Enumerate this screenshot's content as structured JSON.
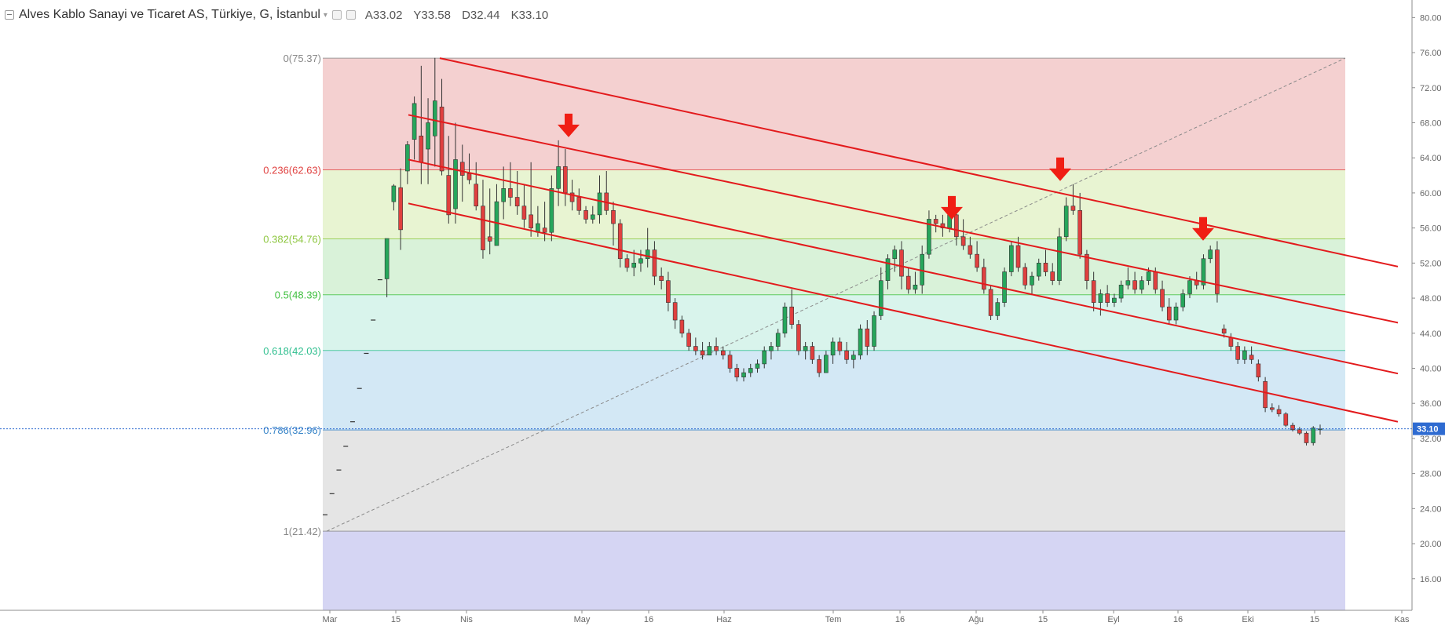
{
  "header": {
    "title": "Alves Kablo Sanayi ve Ticaret AS, Türkiye, G, İstanbul",
    "ohlc": {
      "open": "A33.02",
      "high": "Y33.58",
      "low": "D32.44",
      "close": "K33.10"
    }
  },
  "colors": {
    "up": "#26a65b",
    "down": "#e0403f",
    "channel": "#e31a1c",
    "arrow": "#f01e14",
    "price_line": "#2e6bd1",
    "axis_text": "#666666",
    "zones": [
      "#f4d0d0",
      "#e8f4d2",
      "#d9f2d9",
      "#d9f4ec",
      "#d3e8f5",
      "#e5e5e5",
      "#d5d5f3"
    ],
    "fib_text": [
      "#888888",
      "#e0403f",
      "#8dc63f",
      "#3fbf3f",
      "#2fbf8f",
      "#3a86c8",
      "#888888"
    ]
  },
  "chart_data": {
    "type": "candlestick",
    "symbol_title": "Alves Kablo Sanayi ve Ticaret AS, Türkiye, G, İstanbul",
    "x_tick_labels": [
      "Mar",
      "15",
      "Nis",
      "May",
      "16",
      "Haz",
      "Tem",
      "16",
      "Ağu",
      "15",
      "Eyl",
      "16",
      "Eki",
      "15",
      "Kas"
    ],
    "y_ticks": [
      "80.00",
      "76.00",
      "72.00",
      "68.00",
      "64.00",
      "60.00",
      "56.00",
      "52.00",
      "48.00",
      "44.00",
      "40.00",
      "36.00",
      "32.00",
      "28.00",
      "24.00",
      "20.00",
      "16.00"
    ],
    "ylim": [
      12.4,
      82.0
    ],
    "last_price": "33.10",
    "fibonacci": [
      {
        "label": "0(75.37)",
        "price": 75.37
      },
      {
        "label": "0.236(62.63)",
        "price": 62.63
      },
      {
        "label": "0.382(54.76)",
        "price": 54.76
      },
      {
        "label": "0.5(48.39)",
        "price": 48.39
      },
      {
        "label": "0.618(42.03)",
        "price": 42.03
      },
      {
        "label": "0.786(32.96)",
        "price": 32.96
      },
      {
        "label": "1(21.42)",
        "price": 21.42
      }
    ],
    "fib_trendline": {
      "from_price": 21.42,
      "to_price": 75.37
    },
    "channel_lines": [
      {
        "start_price": 75.37,
        "end_price": 51.6
      },
      {
        "start_price": 68.9,
        "end_price": 45.2
      },
      {
        "start_price": 63.8,
        "end_price": 39.4
      },
      {
        "start_price": 58.8,
        "end_price": 33.9
      }
    ],
    "arrow_markers": [
      {
        "near_price": 66.0
      },
      {
        "near_price": 56.6
      },
      {
        "near_price": 61.0
      },
      {
        "near_price": 54.2
      }
    ],
    "candles": [
      [
        23.4,
        23.4,
        23.3,
        23.3
      ],
      [
        25.8,
        25.8,
        25.7,
        25.7
      ],
      [
        28.5,
        28.5,
        28.4,
        28.4
      ],
      [
        31.2,
        31.2,
        31.1,
        31.1
      ],
      [
        34.0,
        34.0,
        33.9,
        33.9
      ],
      [
        37.8,
        37.8,
        37.7,
        37.7
      ],
      [
        41.8,
        41.8,
        41.7,
        41.7
      ],
      [
        45.6,
        45.6,
        45.5,
        45.5
      ],
      [
        50.2,
        50.2,
        50.1,
        50.1
      ],
      [
        50.2,
        54.8,
        48.1,
        54.8
      ],
      [
        59.0,
        61.0,
        58.0,
        60.8
      ],
      [
        60.6,
        62.8,
        53.5,
        55.8
      ],
      [
        62.5,
        65.9,
        61.0,
        65.5
      ],
      [
        66.1,
        71.0,
        63.8,
        70.2
      ],
      [
        66.5,
        74.5,
        61.0,
        63.5
      ],
      [
        65.0,
        70.8,
        61.0,
        68.0
      ],
      [
        66.5,
        75.4,
        63.0,
        70.5
      ],
      [
        69.8,
        73.0,
        62.0,
        62.5
      ],
      [
        62.0,
        66.5,
        56.5,
        57.5
      ],
      [
        58.2,
        68.0,
        56.5,
        63.8
      ],
      [
        63.5,
        65.5,
        59.0,
        62.0
      ],
      [
        62.2,
        64.5,
        61.0,
        61.5
      ],
      [
        61.0,
        63.5,
        58.0,
        58.5
      ],
      [
        58.5,
        61.5,
        52.5,
        53.5
      ],
      [
        55.0,
        60.5,
        53.0,
        54.5
      ],
      [
        54.0,
        61.0,
        54.0,
        59.0
      ],
      [
        59.0,
        63.0,
        57.0,
        60.5
      ],
      [
        60.5,
        63.5,
        58.5,
        59.5
      ],
      [
        59.5,
        62.5,
        57.5,
        58.5
      ],
      [
        58.5,
        61.0,
        56.0,
        57.0
      ],
      [
        57.5,
        63.5,
        55.0,
        56.0
      ],
      [
        55.5,
        58.5,
        55.0,
        56.5
      ],
      [
        56.0,
        59.0,
        54.5,
        55.5
      ],
      [
        55.5,
        62.0,
        54.5,
        60.5
      ],
      [
        60.5,
        66.0,
        58.5,
        63.0
      ],
      [
        63.0,
        65.0,
        58.5,
        60.0
      ],
      [
        60.0,
        61.5,
        58.0,
        59.0
      ],
      [
        59.5,
        60.5,
        57.5,
        58.0
      ],
      [
        58.0,
        58.5,
        56.5,
        57.0
      ],
      [
        57.0,
        58.5,
        56.5,
        57.5
      ],
      [
        57.5,
        62.0,
        56.5,
        60.0
      ],
      [
        60.0,
        62.5,
        57.5,
        58.0
      ],
      [
        58.0,
        59.0,
        54.0,
        56.5
      ],
      [
        56.5,
        57.0,
        51.5,
        52.5
      ],
      [
        52.5,
        53.0,
        51.0,
        51.5
      ],
      [
        51.5,
        53.5,
        50.5,
        52.0
      ],
      [
        52.0,
        53.5,
        51.0,
        52.5
      ],
      [
        52.5,
        56.0,
        51.5,
        53.5
      ],
      [
        53.5,
        54.5,
        49.5,
        50.5
      ],
      [
        50.5,
        51.5,
        49.0,
        50.0
      ],
      [
        50.0,
        51.0,
        46.5,
        47.5
      ],
      [
        47.5,
        48.0,
        44.5,
        45.5
      ],
      [
        45.5,
        46.0,
        43.5,
        44.0
      ],
      [
        44.0,
        44.5,
        42.0,
        42.5
      ],
      [
        42.5,
        43.5,
        41.5,
        42.0
      ],
      [
        42.0,
        43.0,
        41.0,
        41.5
      ],
      [
        41.5,
        43.0,
        41.5,
        42.5
      ],
      [
        42.5,
        43.5,
        41.5,
        42.0
      ],
      [
        42.0,
        42.5,
        41.0,
        41.5
      ],
      [
        41.5,
        42.0,
        39.5,
        40.0
      ],
      [
        40.0,
        40.5,
        38.5,
        39.0
      ],
      [
        39.0,
        40.0,
        38.5,
        39.5
      ],
      [
        39.5,
        40.5,
        39.0,
        40.0
      ],
      [
        40.0,
        41.0,
        39.5,
        40.5
      ],
      [
        40.5,
        42.5,
        40.0,
        42.0
      ],
      [
        42.0,
        43.0,
        41.0,
        42.5
      ],
      [
        42.5,
        44.5,
        42.0,
        44.0
      ],
      [
        44.0,
        47.5,
        43.5,
        47.0
      ],
      [
        47.0,
        49.0,
        44.5,
        45.0
      ],
      [
        45.0,
        45.5,
        41.5,
        42.0
      ],
      [
        42.0,
        43.0,
        41.0,
        42.5
      ],
      [
        42.5,
        43.0,
        40.5,
        41.0
      ],
      [
        41.0,
        41.5,
        39.0,
        39.5
      ],
      [
        39.5,
        42.0,
        39.5,
        41.5
      ],
      [
        41.5,
        43.5,
        40.5,
        43.0
      ],
      [
        43.0,
        43.5,
        41.5,
        42.0
      ],
      [
        42.0,
        43.0,
        40.5,
        41.0
      ],
      [
        41.0,
        42.0,
        40.0,
        41.5
      ],
      [
        41.5,
        45.0,
        41.0,
        44.5
      ],
      [
        44.5,
        45.5,
        41.5,
        42.5
      ],
      [
        42.5,
        46.5,
        42.0,
        46.0
      ],
      [
        46.0,
        51.5,
        45.5,
        50.0
      ],
      [
        50.0,
        53.0,
        49.0,
        52.5
      ],
      [
        52.5,
        54.0,
        51.0,
        53.5
      ],
      [
        53.5,
        54.5,
        49.0,
        50.5
      ],
      [
        50.5,
        51.5,
        48.5,
        49.0
      ],
      [
        49.0,
        51.0,
        48.5,
        49.5
      ],
      [
        49.5,
        54.0,
        48.5,
        53.0
      ],
      [
        53.0,
        58.0,
        52.5,
        57.0
      ],
      [
        57.0,
        57.5,
        55.5,
        56.5
      ],
      [
        56.5,
        57.5,
        55.0,
        56.0
      ],
      [
        56.0,
        58.5,
        55.5,
        57.5
      ],
      [
        57.5,
        58.0,
        54.0,
        55.0
      ],
      [
        55.0,
        57.0,
        53.5,
        54.0
      ],
      [
        54.0,
        55.0,
        52.5,
        53.0
      ],
      [
        53.0,
        54.5,
        51.0,
        51.5
      ],
      [
        51.5,
        52.5,
        48.5,
        49.0
      ],
      [
        49.0,
        49.5,
        45.5,
        46.0
      ],
      [
        46.0,
        48.0,
        45.5,
        47.5
      ],
      [
        47.5,
        51.5,
        47.0,
        51.0
      ],
      [
        51.0,
        54.5,
        50.5,
        54.0
      ],
      [
        54.0,
        55.0,
        51.0,
        51.5
      ],
      [
        51.5,
        52.0,
        49.0,
        49.5
      ],
      [
        49.5,
        51.0,
        48.5,
        50.5
      ],
      [
        50.5,
        52.5,
        50.0,
        52.0
      ],
      [
        52.0,
        53.5,
        50.5,
        51.0
      ],
      [
        51.0,
        52.0,
        49.5,
        50.0
      ],
      [
        50.0,
        56.0,
        49.5,
        55.0
      ],
      [
        55.0,
        59.5,
        54.5,
        58.5
      ],
      [
        58.5,
        61.0,
        57.5,
        58.0
      ],
      [
        58.0,
        60.0,
        52.5,
        53.0
      ],
      [
        53.0,
        53.5,
        49.0,
        50.0
      ],
      [
        50.0,
        51.0,
        46.5,
        47.5
      ],
      [
        47.5,
        49.0,
        46.0,
        48.5
      ],
      [
        48.5,
        49.5,
        47.0,
        47.5
      ],
      [
        47.5,
        48.5,
        47.0,
        48.0
      ],
      [
        48.0,
        50.0,
        47.5,
        49.5
      ],
      [
        49.5,
        51.5,
        49.0,
        50.0
      ],
      [
        50.0,
        51.0,
        48.5,
        49.0
      ],
      [
        49.0,
        50.5,
        48.5,
        50.0
      ],
      [
        50.0,
        51.5,
        49.5,
        51.0
      ],
      [
        51.0,
        51.5,
        48.5,
        49.0
      ],
      [
        49.0,
        50.0,
        46.5,
        47.0
      ],
      [
        47.0,
        48.0,
        45.0,
        45.5
      ],
      [
        45.5,
        47.5,
        45.0,
        47.0
      ],
      [
        47.0,
        49.0,
        46.5,
        48.5
      ],
      [
        48.5,
        50.5,
        48.0,
        50.0
      ],
      [
        50.0,
        51.0,
        49.0,
        49.5
      ],
      [
        49.5,
        53.0,
        49.0,
        52.5
      ],
      [
        52.5,
        54.0,
        52.0,
        53.5
      ],
      [
        53.5,
        54.5,
        47.5,
        48.5
      ],
      [
        44.5,
        45.0,
        43.5,
        44.0
      ],
      [
        43.5,
        44.0,
        42.0,
        42.5
      ],
      [
        42.5,
        43.0,
        40.5,
        41.0
      ],
      [
        41.0,
        42.5,
        40.5,
        42.0
      ],
      [
        41.5,
        42.5,
        40.5,
        41.0
      ],
      [
        40.5,
        41.0,
        38.5,
        39.0
      ],
      [
        38.5,
        39.0,
        35.0,
        35.5
      ],
      [
        35.5,
        36.0,
        35.0,
        35.3
      ],
      [
        35.3,
        35.8,
        34.5,
        34.8
      ],
      [
        34.8,
        35.0,
        33.3,
        33.5
      ],
      [
        33.5,
        33.8,
        32.8,
        33.0
      ],
      [
        33.0,
        33.3,
        32.4,
        32.6
      ],
      [
        32.6,
        32.8,
        31.2,
        31.5
      ],
      [
        31.5,
        33.4,
        31.2,
        33.2
      ],
      [
        33.02,
        33.58,
        32.44,
        33.1
      ]
    ]
  }
}
